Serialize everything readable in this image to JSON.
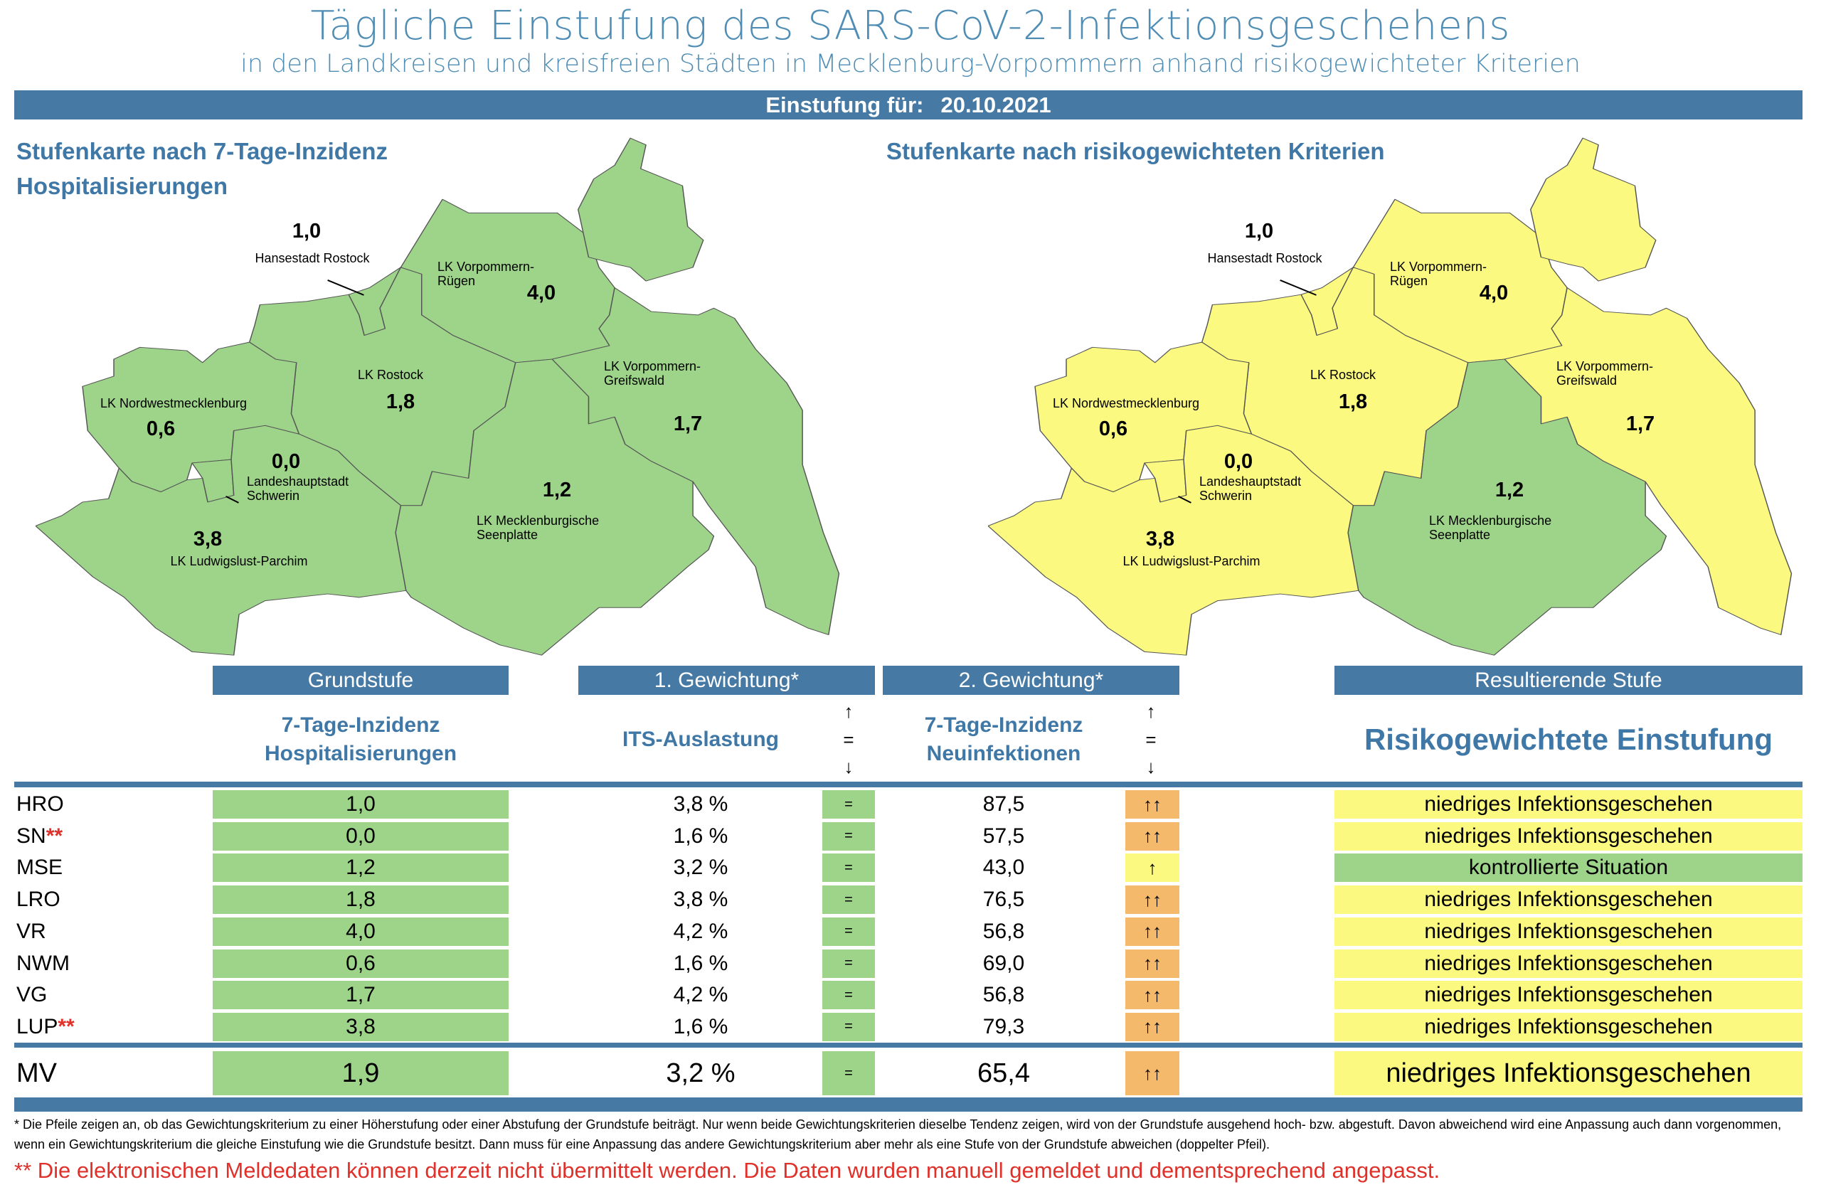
{
  "header": {
    "title": "Tägliche Einstufung des SARS-CoV-2-Infektionsgeschehens",
    "subtitle": "in den Landkreisen und kreisfreien Städten in Mecklenburg-Vorpommern anhand risikogewichteter Kriterien",
    "date_label": "Einstufung für:",
    "date": "20.10.2021"
  },
  "maps": {
    "left_title_1": "Stufenkarte nach 7-Tage-Inzidenz",
    "left_title_2": "Hospitalisierungen",
    "right_title": "Stufenkarte nach risikogewichteten Kriterien",
    "colors": {
      "green": "#9dd48a",
      "yellow": "#fbf97f"
    },
    "regions": [
      {
        "id": "hro",
        "label": "Hansestadt Rostock",
        "value": "1,0",
        "left_color": "green",
        "right_color": "yellow"
      },
      {
        "id": "vr",
        "label": "LK Vorpommern-\nRügen",
        "value": "4,0",
        "left_color": "green",
        "right_color": "yellow"
      },
      {
        "id": "lro",
        "label": "LK Rostock",
        "value": "1,8",
        "left_color": "green",
        "right_color": "yellow"
      },
      {
        "id": "vg",
        "label": "LK Vorpommern-\nGreifswald",
        "value": "1,7",
        "left_color": "green",
        "right_color": "yellow"
      },
      {
        "id": "nwm",
        "label": "LK Nordwestmecklenburg",
        "value": "0,6",
        "left_color": "green",
        "right_color": "yellow"
      },
      {
        "id": "sn",
        "label": "Landeshauptstadt\nSchwerin",
        "value": "0,0",
        "left_color": "green",
        "right_color": "yellow"
      },
      {
        "id": "mse",
        "label": "LK Mecklenburgische\nSeenplatte",
        "value": "1,2",
        "left_color": "green",
        "right_color": "green"
      },
      {
        "id": "lup",
        "label": "LK Ludwigslust-Parchim",
        "value": "3,8",
        "left_color": "green",
        "right_color": "yellow"
      }
    ]
  },
  "table": {
    "headers": {
      "grundstufe": "Grundstufe",
      "gew1": "1. Gewichtung*",
      "gew2": "2. Gewichtung*",
      "result": "Resultierende Stufe"
    },
    "subheaders": {
      "grundstufe": "7-Tage-Inzidenz\nHospitalisierungen",
      "gew1": "ITS-Auslastung",
      "gew2": "7-Tage-Inzidenz\nNeuinfektionen",
      "result": "Risikogewichtete Einstufung",
      "arrow_up": "↑",
      "arrow_eq": "=",
      "arrow_down": "↓"
    },
    "rows": [
      {
        "code": "HRO",
        "star": "",
        "grund": "1,0",
        "its": "3,8 %",
        "its_arrow": "=",
        "neu": "87,5",
        "neu_arrow": "↑↑",
        "neu_arrow_color": "orange",
        "result": "niedriges Infektionsgeschehen",
        "result_color": "yellow"
      },
      {
        "code": "SN",
        "star": "**",
        "grund": "0,0",
        "its": "1,6 %",
        "its_arrow": "=",
        "neu": "57,5",
        "neu_arrow": "↑↑",
        "neu_arrow_color": "orange",
        "result": "niedriges Infektionsgeschehen",
        "result_color": "yellow"
      },
      {
        "code": "MSE",
        "star": "",
        "grund": "1,2",
        "its": "3,2 %",
        "its_arrow": "=",
        "neu": "43,0",
        "neu_arrow": "↑",
        "neu_arrow_color": "yellow",
        "result": "kontrollierte Situation",
        "result_color": "green"
      },
      {
        "code": "LRO",
        "star": "",
        "grund": "1,8",
        "its": "3,8 %",
        "its_arrow": "=",
        "neu": "76,5",
        "neu_arrow": "↑↑",
        "neu_arrow_color": "orange",
        "result": "niedriges Infektionsgeschehen",
        "result_color": "yellow"
      },
      {
        "code": "VR",
        "star": "",
        "grund": "4,0",
        "its": "4,2 %",
        "its_arrow": "=",
        "neu": "56,8",
        "neu_arrow": "↑↑",
        "neu_arrow_color": "orange",
        "result": "niedriges Infektionsgeschehen",
        "result_color": "yellow"
      },
      {
        "code": "NWM",
        "star": "",
        "grund": "0,6",
        "its": "1,6 %",
        "its_arrow": "=",
        "neu": "69,0",
        "neu_arrow": "↑↑",
        "neu_arrow_color": "orange",
        "result": "niedriges Infektionsgeschehen",
        "result_color": "yellow"
      },
      {
        "code": "VG",
        "star": "",
        "grund": "1,7",
        "its": "4,2 %",
        "its_arrow": "=",
        "neu": "56,8",
        "neu_arrow": "↑↑",
        "neu_arrow_color": "orange",
        "result": "niedriges Infektionsgeschehen",
        "result_color": "yellow"
      },
      {
        "code": "LUP",
        "star": "**",
        "grund": "3,8",
        "its": "1,6 %",
        "its_arrow": "=",
        "neu": "79,3",
        "neu_arrow": "↑↑",
        "neu_arrow_color": "orange",
        "result": "niedriges Infektionsgeschehen",
        "result_color": "yellow"
      }
    ],
    "total": {
      "code": "MV",
      "grund": "1,9",
      "its": "3,2 %",
      "its_arrow": "=",
      "neu": "65,4",
      "neu_arrow": "↑↑",
      "neu_arrow_color": "orange",
      "result": "niedriges Infektionsgeschehen",
      "result_color": "yellow"
    }
  },
  "footnotes": {
    "note_1": "* Die Pfeile zeigen an, ob das Gewichtungskriterium zu einer Höherstufung oder einer Abstufung der Grundstufe beiträgt. Nur wenn beide Gewichtungskriterien dieselbe Tendenz zeigen, wird von der Grundstufe ausgehend hoch- bzw. abgestuft.  Davon abweichend wird eine Anpassung auch dann vorgenommen, wenn ein Gewichtungskriterium die gleiche Einstufung wie die Grundstufe besitzt. Dann muss für eine Anpassung das andere Gewichtungskriterium aber mehr als eine Stufe von der Grundstufe abweichen (doppelter Pfeil).",
    "note_2": "** Die elektronischen Meldedaten können derzeit nicht übermittelt werden. Die Daten wurden manuell gemeldet und dementsprechend angepasst."
  }
}
